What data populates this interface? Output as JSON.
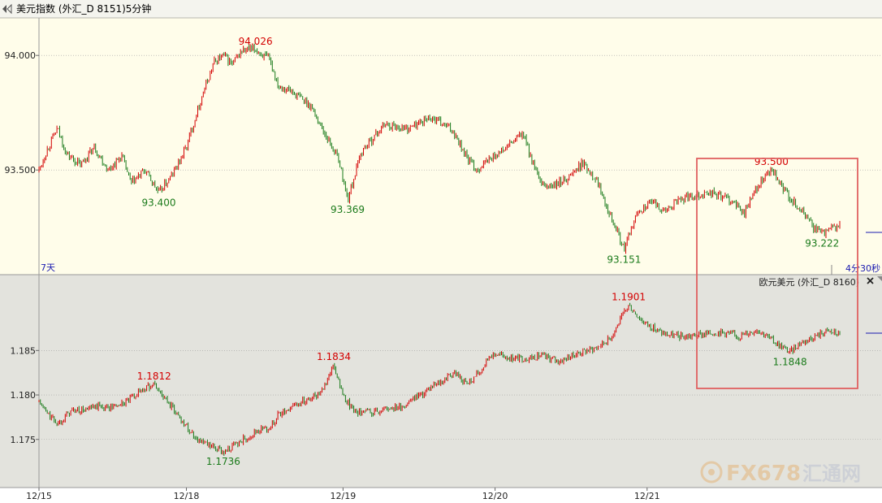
{
  "window": {
    "back_icon": "back-arrow-icon",
    "title": "美元指数 (外汇_D 8151)5分钟"
  },
  "top_panel": {
    "period_label": "7天",
    "countdown": "4分30秒"
  },
  "bottom_panel": {
    "title": "欧元美元 (外汇_D 8160)",
    "close_icon": "close-icon"
  },
  "watermark": {
    "brand": "FX678",
    "cn": "汇通网"
  },
  "colors": {
    "top_bg": "#fffdea",
    "bottom_bg": "#e3e3dd",
    "up": "#d40000",
    "down": "#1a7a1a",
    "annot_high": "#d40000",
    "annot_low": "#1a7a1a",
    "highlight_box": "#e06060",
    "axis_text": "#222222"
  },
  "chart_data": [
    {
      "type": "line",
      "name": "usd_index",
      "ylim": [
        93.1,
        94.1
      ],
      "yticks": [
        94.0,
        93.5
      ],
      "ytick_labels": [
        "94.000",
        "93.500"
      ],
      "grid": true,
      "x": [
        0,
        4,
        8,
        12,
        18,
        24,
        30,
        36,
        40,
        46,
        52,
        58,
        64,
        70,
        76,
        80,
        84,
        88,
        94,
        100,
        104,
        110,
        118,
        124,
        130,
        134,
        140,
        150,
        160,
        170,
        180,
        186,
        190,
        196,
        202,
        210,
        218,
        224,
        230,
        236,
        242,
        250,
        254,
        260,
        266,
        272,
        278,
        284,
        292,
        300,
        306,
        312,
        318,
        322,
        326,
        330,
        334,
        336,
        340,
        344,
        348
      ],
      "y": [
        93.5,
        93.6,
        93.68,
        93.57,
        93.52,
        93.6,
        93.5,
        93.56,
        93.44,
        93.5,
        93.4,
        93.48,
        93.6,
        93.8,
        93.97,
        94.0,
        93.96,
        94.02,
        94.026,
        93.98,
        93.87,
        93.84,
        93.78,
        93.66,
        93.55,
        93.369,
        93.58,
        93.7,
        93.68,
        93.73,
        93.67,
        93.55,
        93.5,
        93.55,
        93.59,
        93.66,
        93.43,
        93.43,
        93.47,
        93.53,
        93.46,
        93.26,
        93.151,
        93.32,
        93.36,
        93.32,
        93.37,
        93.39,
        93.4,
        93.37,
        93.31,
        93.43,
        93.5,
        93.43,
        93.38,
        93.33,
        93.29,
        93.25,
        93.222,
        93.24,
        93.26
      ],
      "annotations": [
        {
          "x": 94,
          "y": 94.026,
          "text": "94.026",
          "kind": "high"
        },
        {
          "x": 52,
          "y": 93.4,
          "text": "93.400",
          "kind": "low"
        },
        {
          "x": 134,
          "y": 93.369,
          "text": "93.369",
          "kind": "low"
        },
        {
          "x": 254,
          "y": 93.151,
          "text": "93.151",
          "kind": "low"
        },
        {
          "x": 318,
          "y": 93.5,
          "text": "93.500",
          "kind": "high"
        },
        {
          "x": 340,
          "y": 93.222,
          "text": "93.222",
          "kind": "low"
        }
      ]
    },
    {
      "type": "line",
      "name": "eur_usd",
      "ylim": [
        1.1705,
        1.1917
      ],
      "yticks": [
        1.185,
        1.18,
        1.175
      ],
      "ytick_labels": [
        "1.185",
        "1.180",
        "1.175"
      ],
      "grid": true,
      "x": [
        0,
        4,
        8,
        14,
        20,
        26,
        32,
        38,
        44,
        50,
        54,
        58,
        62,
        66,
        70,
        74,
        80,
        86,
        90,
        96,
        100,
        104,
        110,
        116,
        122,
        128,
        132,
        136,
        140,
        146,
        152,
        158,
        164,
        170,
        176,
        180,
        186,
        192,
        196,
        200,
        204,
        210,
        218,
        226,
        234,
        242,
        248,
        256,
        262,
        268,
        272,
        280,
        288,
        296,
        304,
        312,
        318,
        322,
        326,
        330,
        336,
        342,
        348
      ],
      "y": [
        1.1792,
        1.1778,
        1.1768,
        1.1782,
        1.1783,
        1.1787,
        1.1786,
        1.1792,
        1.1805,
        1.1812,
        1.1798,
        1.1785,
        1.1772,
        1.1758,
        1.1748,
        1.1742,
        1.1736,
        1.1745,
        1.1752,
        1.1761,
        1.1762,
        1.1778,
        1.1787,
        1.1795,
        1.1802,
        1.1834,
        1.1798,
        1.1785,
        1.1779,
        1.1781,
        1.1785,
        1.1787,
        1.1798,
        1.1807,
        1.1816,
        1.1825,
        1.1812,
        1.1828,
        1.1846,
        1.1845,
        1.1842,
        1.1841,
        1.1844,
        1.1838,
        1.1847,
        1.1853,
        1.1864,
        1.1901,
        1.1883,
        1.1873,
        1.1868,
        1.1865,
        1.1868,
        1.1871,
        1.1866,
        1.1874,
        1.1862,
        1.1855,
        1.1848,
        1.1858,
        1.1865,
        1.1872,
        1.1868
      ],
      "annotations": [
        {
          "x": 50,
          "y": 1.1812,
          "text": "1.1812",
          "kind": "high"
        },
        {
          "x": 80,
          "y": 1.1736,
          "text": "1.1736",
          "kind": "low"
        },
        {
          "x": 128,
          "y": 1.1834,
          "text": "1.1834",
          "kind": "high"
        },
        {
          "x": 256,
          "y": 1.1901,
          "text": "1.1901",
          "kind": "high"
        },
        {
          "x": 326,
          "y": 1.1848,
          "text": "1.1848",
          "kind": "low"
        }
      ]
    }
  ],
  "x_axis": {
    "labels": [
      {
        "x": 0,
        "text": "12/15"
      },
      {
        "x": 64,
        "text": "12/18"
      },
      {
        "x": 132,
        "text": "12/19"
      },
      {
        "x": 198,
        "text": "12/20"
      },
      {
        "x": 264,
        "text": "12/21"
      }
    ],
    "xlim": [
      0,
      348
    ]
  }
}
